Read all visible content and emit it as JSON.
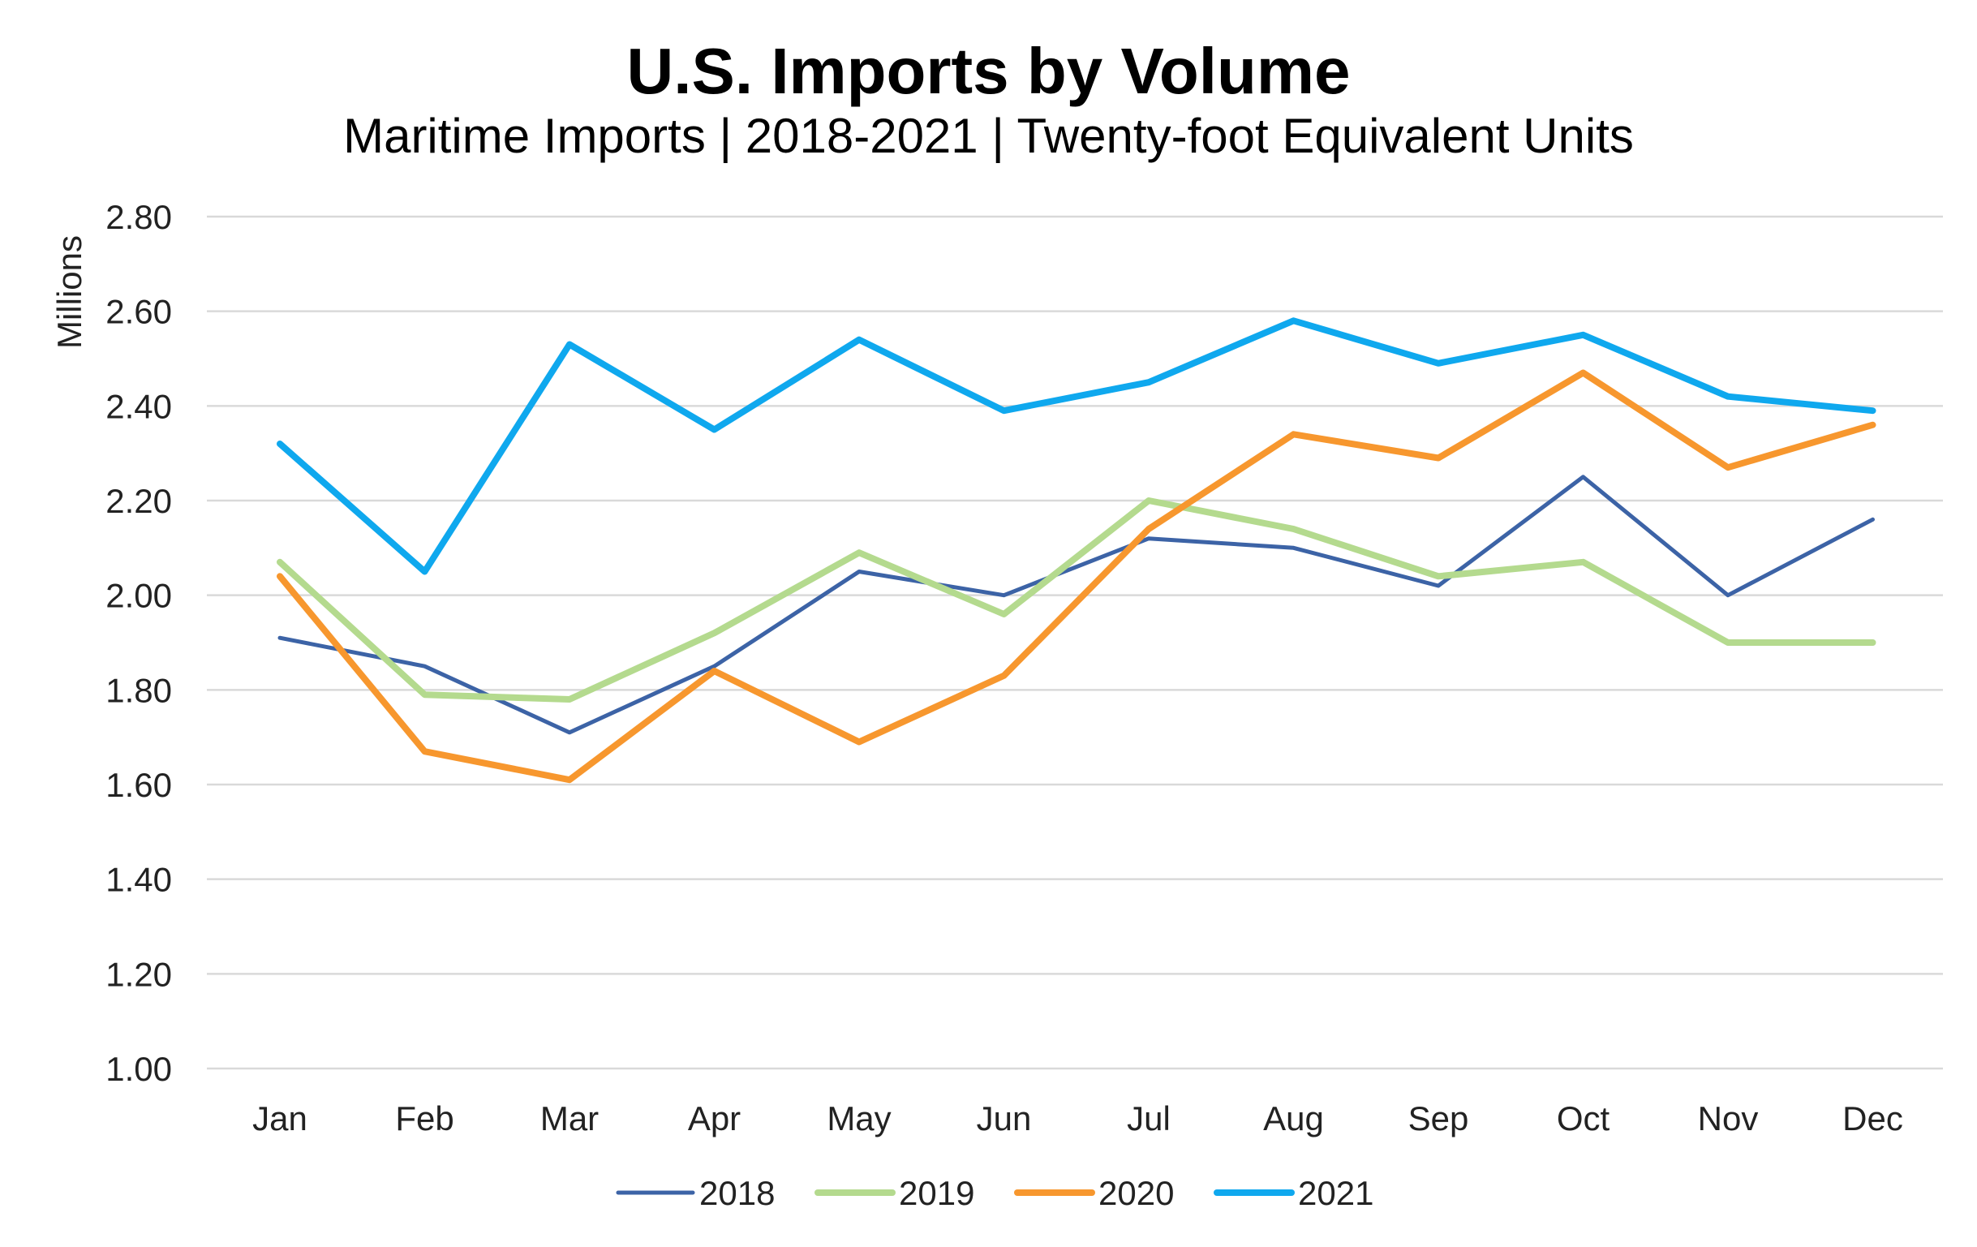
{
  "chart_data": {
    "type": "line",
    "title": "U.S. Imports by Volume",
    "subtitle": "Maritime Imports | 2018-2021 | Twenty-foot Equivalent Units",
    "ylabel": "Millions",
    "xlabel": "",
    "ylim": [
      1.0,
      2.8
    ],
    "yticks": [
      "1.00",
      "1.20",
      "1.40",
      "1.60",
      "1.80",
      "2.00",
      "2.20",
      "2.40",
      "2.60",
      "2.80"
    ],
    "ytick_values": [
      1.0,
      1.2,
      1.4,
      1.6,
      1.8,
      2.0,
      2.2,
      2.4,
      2.6,
      2.8
    ],
    "categories": [
      "Jan",
      "Feb",
      "Mar",
      "Apr",
      "May",
      "Jun",
      "Jul",
      "Aug",
      "Sep",
      "Oct",
      "Nov",
      "Dec"
    ],
    "grid": true,
    "legend_position": "bottom",
    "series": [
      {
        "name": "2018",
        "color": "#3c63a6",
        "width": "thin",
        "values": [
          1.91,
          1.85,
          1.71,
          1.85,
          2.05,
          2.0,
          2.12,
          2.1,
          2.02,
          2.25,
          2.0,
          2.16
        ]
      },
      {
        "name": "2019",
        "color": "#b4da8e",
        "width": "thick",
        "values": [
          2.07,
          1.79,
          1.78,
          1.92,
          2.09,
          1.96,
          2.2,
          2.14,
          2.04,
          2.07,
          1.9,
          1.9
        ]
      },
      {
        "name": "2020",
        "color": "#f7972e",
        "width": "thick",
        "values": [
          2.04,
          1.67,
          1.61,
          1.84,
          1.69,
          1.83,
          2.14,
          2.34,
          2.29,
          2.47,
          2.27,
          2.36
        ]
      },
      {
        "name": "2021",
        "color": "#0fa8ee",
        "width": "thick",
        "values": [
          2.32,
          2.05,
          2.53,
          2.35,
          2.54,
          2.39,
          2.45,
          2.58,
          2.49,
          2.55,
          2.42,
          2.39
        ]
      }
    ]
  }
}
